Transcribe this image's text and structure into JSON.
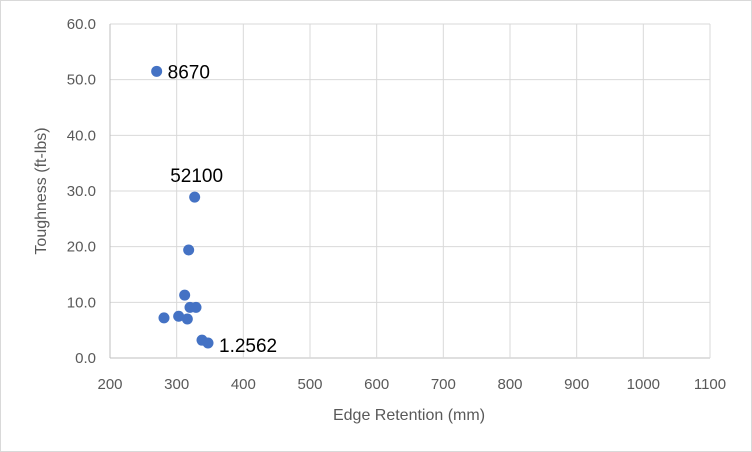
{
  "chart_data": {
    "type": "scatter",
    "xlabel": "Edge Retention (mm)",
    "ylabel": "Toughness (ft-lbs)",
    "xlim": [
      200,
      1100
    ],
    "ylim": [
      0,
      60
    ],
    "x_ticks": [
      "200",
      "300",
      "400",
      "500",
      "600",
      "700",
      "800",
      "900",
      "1000",
      "1100"
    ],
    "y_ticks": [
      "0.0",
      "10.0",
      "20.0",
      "30.0",
      "40.0",
      "50.0",
      "60.0"
    ],
    "grid": true,
    "legend": "none",
    "marker_color": "#4472c4",
    "points": [
      {
        "x": 270,
        "y": 51.5,
        "label": "8670"
      },
      {
        "x": 327,
        "y": 28.9,
        "label": "52100"
      },
      {
        "x": 318,
        "y": 19.4
      },
      {
        "x": 312,
        "y": 11.3
      },
      {
        "x": 320,
        "y": 9.1
      },
      {
        "x": 329,
        "y": 9.1
      },
      {
        "x": 281,
        "y": 7.2
      },
      {
        "x": 303,
        "y": 7.5
      },
      {
        "x": 316,
        "y": 7.0
      },
      {
        "x": 338,
        "y": 3.2
      },
      {
        "x": 347,
        "y": 2.7,
        "label": "1.2562"
      }
    ]
  }
}
